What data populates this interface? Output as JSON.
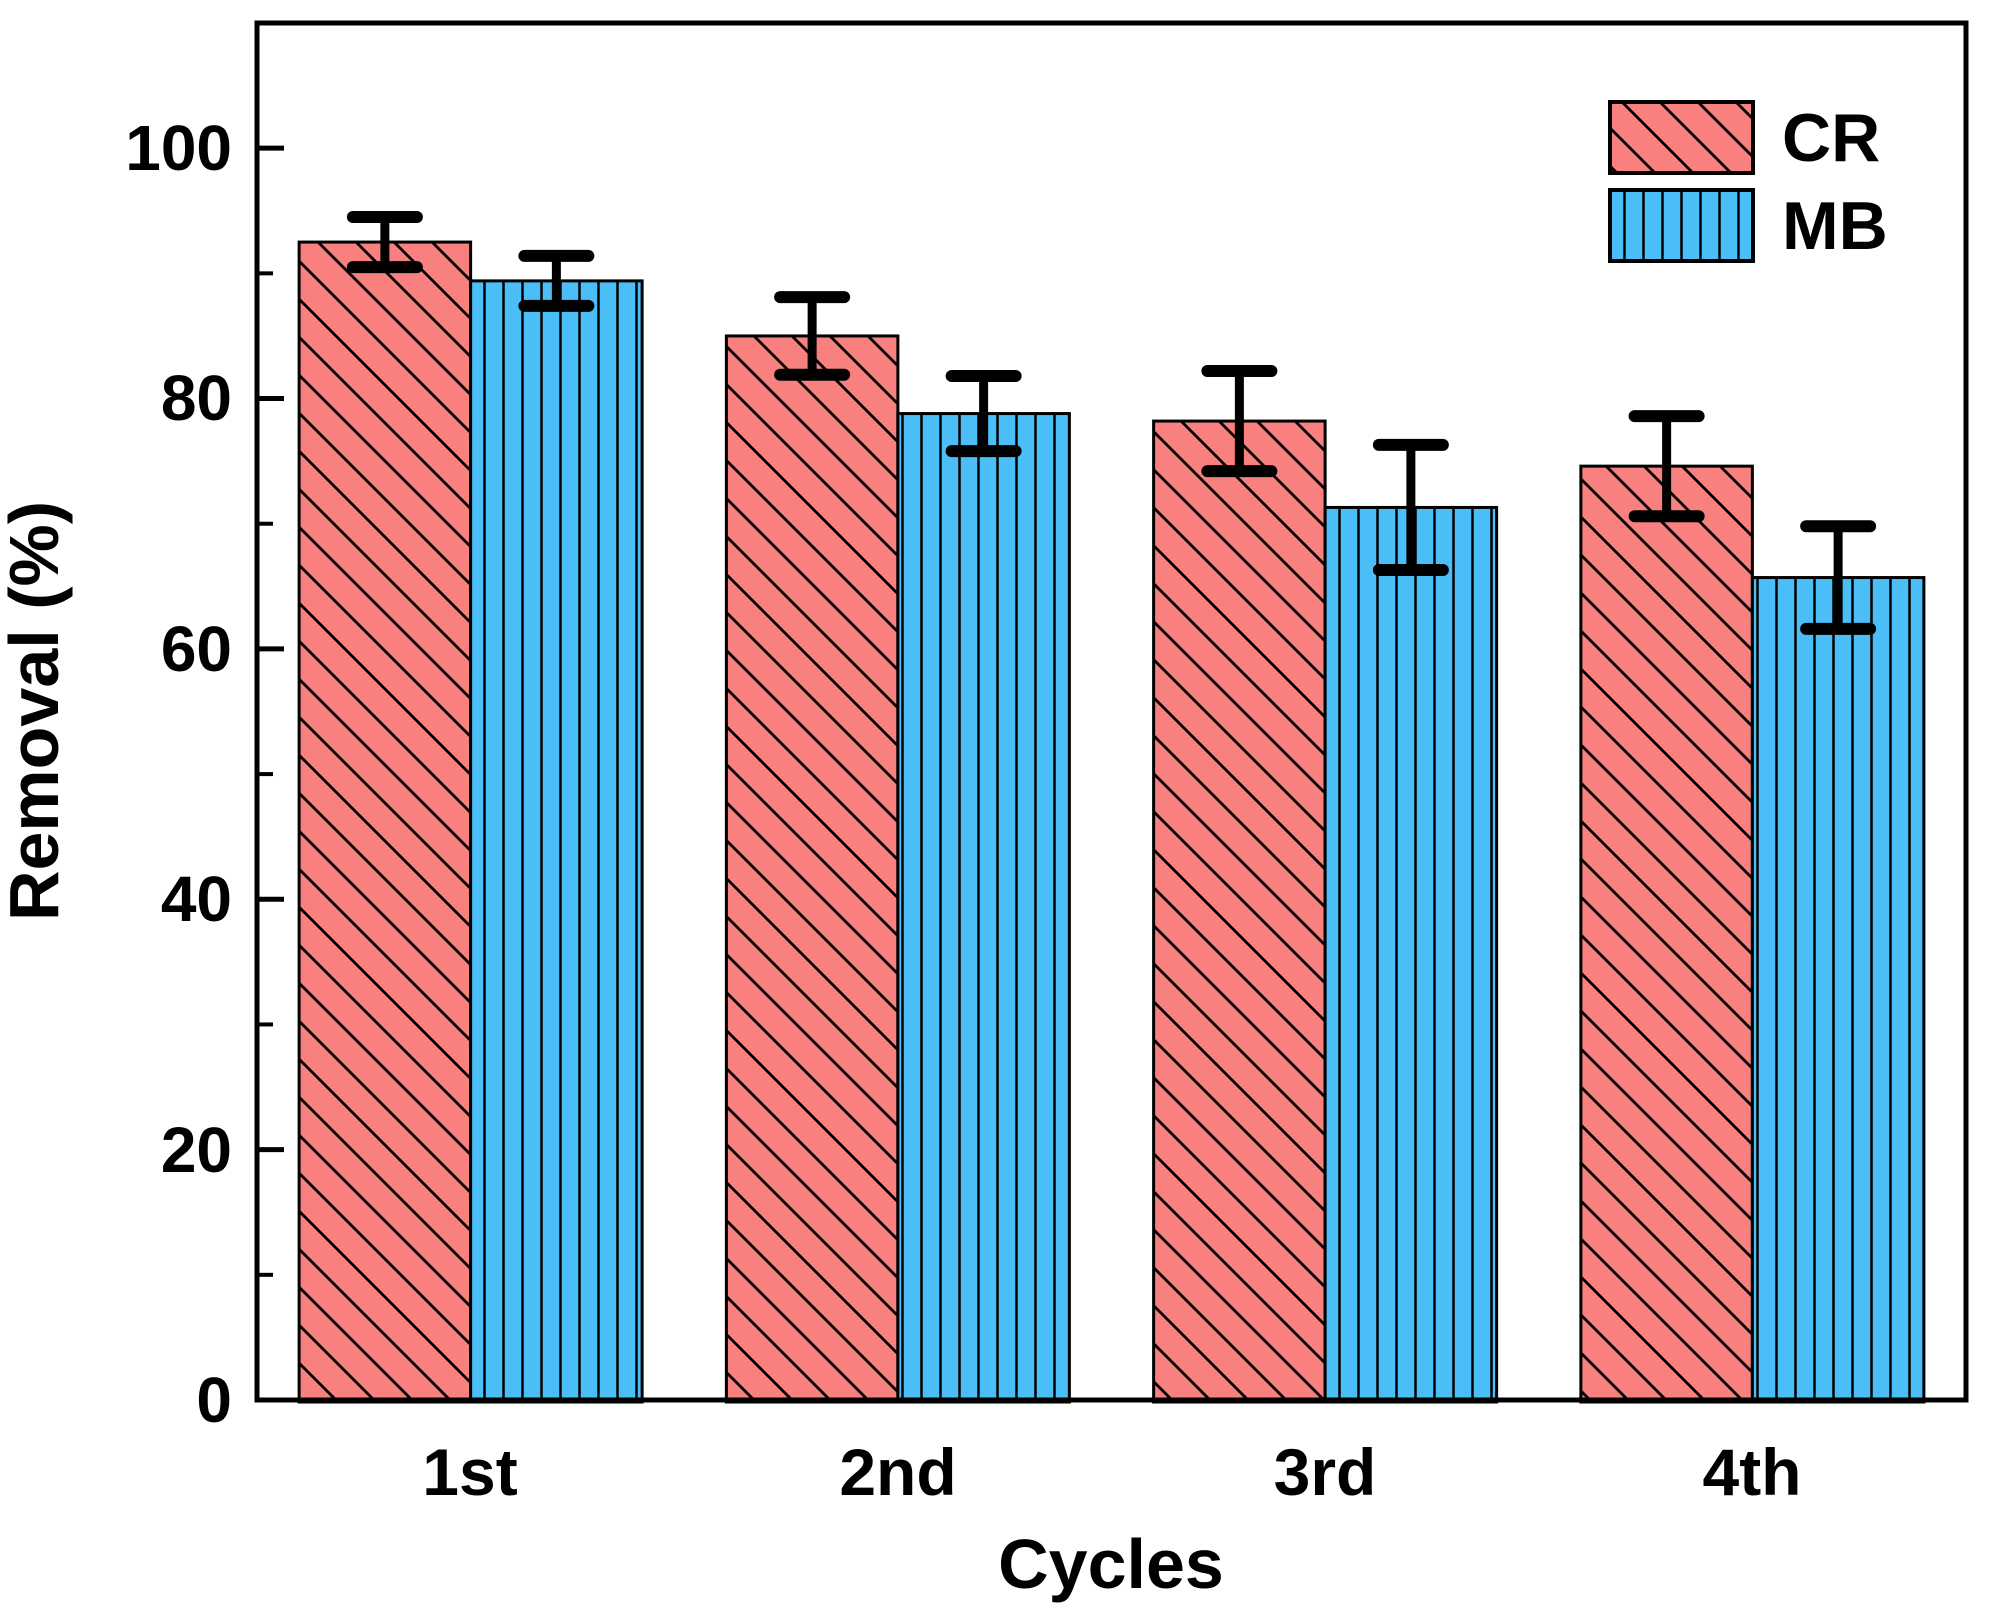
{
  "chart_data": {
    "type": "bar",
    "title": "",
    "xlabel": "Cycles",
    "ylabel": "Removal (%)",
    "categories": [
      "1st",
      "2nd",
      "3rd",
      "4th"
    ],
    "series": [
      {
        "name": "CR",
        "values": [
          92.5,
          85.0,
          78.2,
          74.6
        ],
        "errors": [
          2.0,
          3.1,
          4.0,
          4.0
        ],
        "fill": "#F8807E",
        "hatch": "diagonal-down",
        "edge": "#000000"
      },
      {
        "name": "MB",
        "values": [
          89.4,
          78.8,
          71.3,
          65.7
        ],
        "errors": [
          2.0,
          3.0,
          5.0,
          4.1
        ],
        "fill": "#4CBEF7",
        "hatch": "vertical",
        "edge": "#000000"
      }
    ],
    "ylim": [
      0,
      110
    ],
    "yticks": [
      0,
      20,
      40,
      60,
      80,
      100
    ],
    "yminorticks": [
      10,
      30,
      50,
      70,
      90
    ],
    "grid": false,
    "legend_position": "top-right",
    "error_bar_color": "#000000"
  }
}
